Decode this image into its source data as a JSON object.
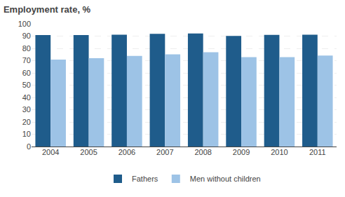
{
  "chart_data": {
    "type": "bar",
    "title": "Employment rate, %",
    "categories": [
      "2004",
      "2005",
      "2006",
      "2007",
      "2008",
      "2009",
      "2010",
      "2011"
    ],
    "series": [
      {
        "name": "Fathers",
        "color": "#1F5C8B",
        "values": [
          90.8,
          90.8,
          91.2,
          91.8,
          92.2,
          90.2,
          91.0,
          91.2
        ]
      },
      {
        "name": "Men without children",
        "color": "#9DC3E6",
        "values": [
          70.8,
          72.0,
          73.8,
          75.2,
          76.8,
          72.8,
          72.8,
          74.2
        ]
      }
    ],
    "ylim": [
      0,
      100
    ],
    "yticks": [
      0,
      10,
      20,
      30,
      40,
      50,
      60,
      70,
      80,
      90,
      100
    ],
    "grid": true,
    "legend": "bottom"
  }
}
